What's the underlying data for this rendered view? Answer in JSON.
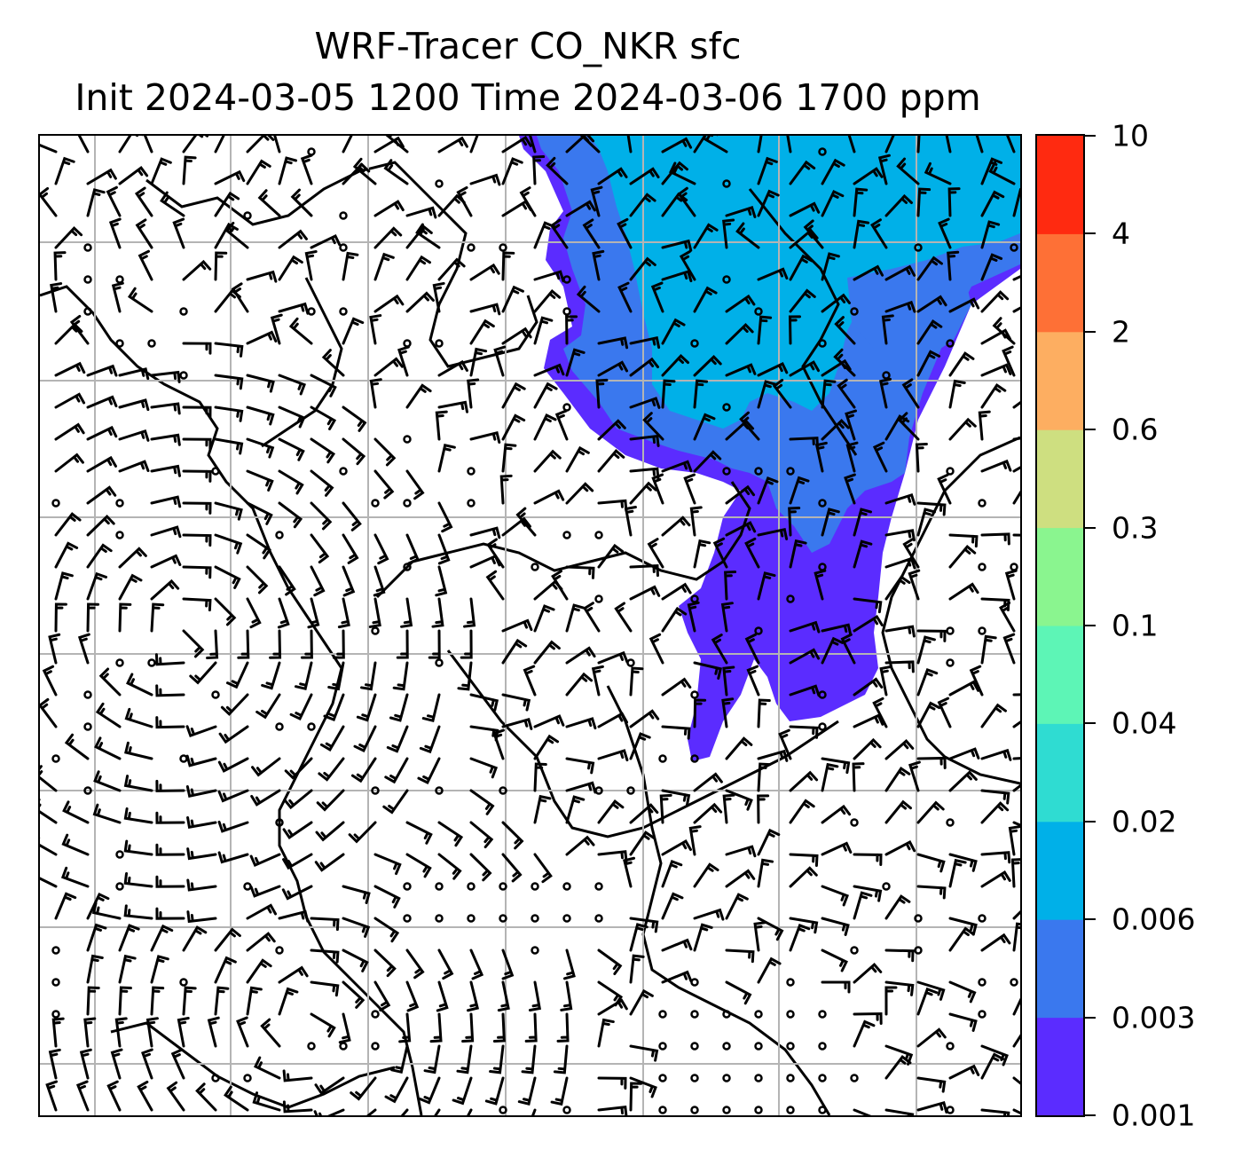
{
  "title": {
    "line1": "WRF-Tracer CO_NKR sfc",
    "line2": "Init 2024-03-05 1200 Time 2024-03-06 1700 ppm"
  },
  "map": {
    "gridlines": "on",
    "land_fill": "#ffffff",
    "coastline_color": "#000000",
    "barb_color": "#000000",
    "tracer_palette_note_levels": [
      0.001,
      0.003,
      0.006,
      0.02
    ]
  },
  "colorbar": {
    "orientation": "vertical",
    "placement": "right",
    "levels": [
      "0.001",
      "0.003",
      "0.006",
      "0.02",
      "0.04",
      "0.1",
      "0.3",
      "0.6",
      "2",
      "4",
      "10"
    ],
    "colors": [
      "#5b2cff",
      "#3a78ee",
      "#00b0e8",
      "#2fdcd2",
      "#5df5b6",
      "#8af58f",
      "#cedf80",
      "#fdae61",
      "#fe7036",
      "#ff2a10"
    ]
  }
}
